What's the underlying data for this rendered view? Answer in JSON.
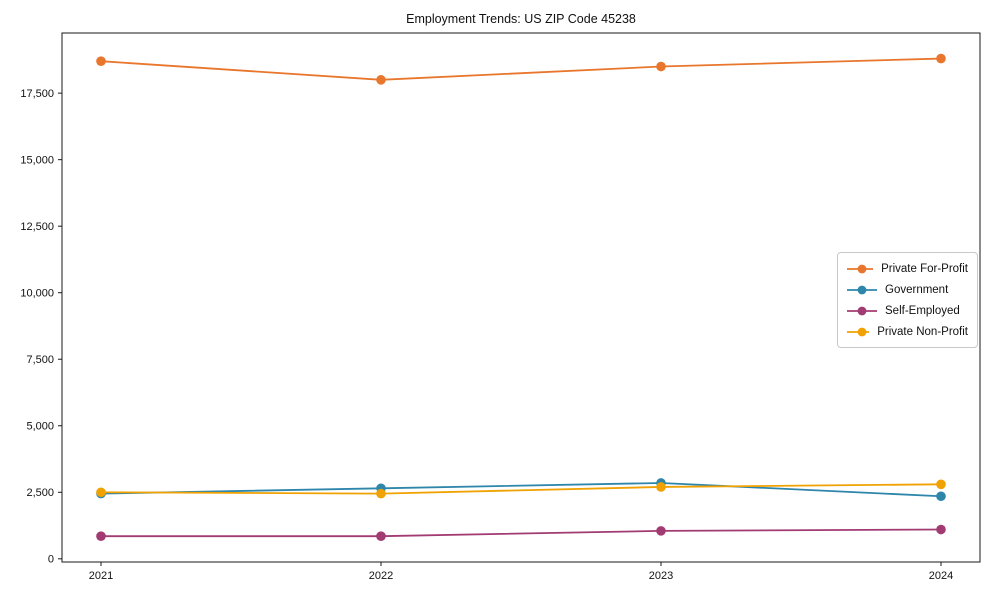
{
  "chart_data": {
    "type": "line",
    "title": "Employment Trends: US ZIP Code 45238",
    "xlabel": "",
    "ylabel": "",
    "categories": [
      "2021",
      "2022",
      "2023",
      "2024"
    ],
    "series": [
      {
        "name": "Private For-Profit",
        "color": "#e8762c",
        "values": [
          18700,
          18000,
          18500,
          18800
        ]
      },
      {
        "name": "Government",
        "color": "#2e86ab",
        "values": [
          2450,
          2650,
          2850,
          2350
        ]
      },
      {
        "name": "Self-Employed",
        "color": "#a23b72",
        "values": [
          850,
          850,
          1050,
          1100
        ]
      },
      {
        "name": "Private Non-Profit",
        "color": "#f0a202",
        "values": [
          2500,
          2450,
          2700,
          2800
        ]
      }
    ],
    "yticks": [
      0,
      2500,
      5000,
      7500,
      10000,
      12500,
      15000,
      17500
    ],
    "ylim": [
      -120,
      19760
    ],
    "grid": false,
    "legend_position": "center-right",
    "marker": "circle",
    "axis_color": "#1a1a1a"
  }
}
